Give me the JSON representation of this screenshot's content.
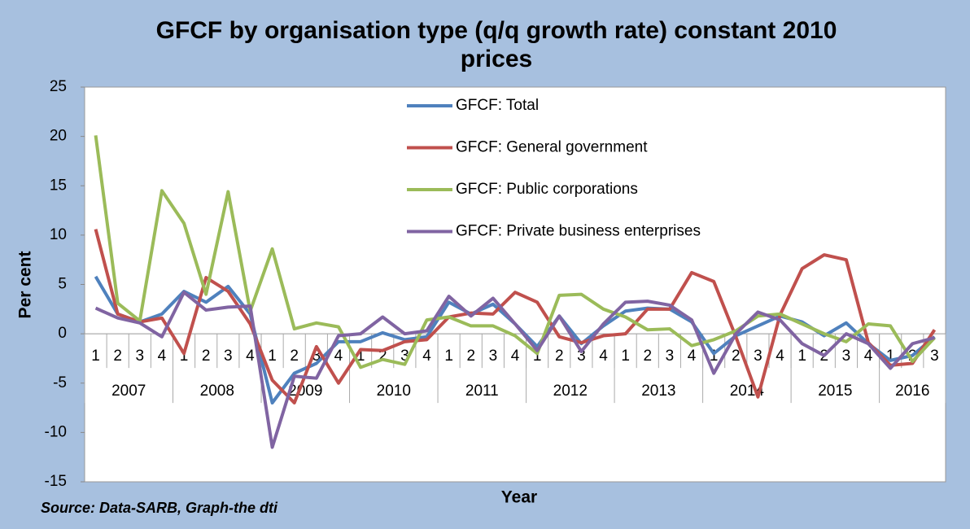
{
  "chart_data": {
    "type": "line",
    "title": "GFCF by organisation type (q/q growth rate) constant 2010 prices",
    "y_label": "Per cent",
    "x_label": "Year",
    "source": "Source: Data-SARB, Graph-the dti",
    "categories": [
      "1",
      "2",
      "3",
      "4",
      "1",
      "2",
      "3",
      "4",
      "1",
      "2",
      "3",
      "4",
      "1",
      "2",
      "3",
      "4",
      "1",
      "2",
      "3",
      "4",
      "1",
      "2",
      "3",
      "4",
      "1",
      "2",
      "3",
      "4",
      "1",
      "2",
      "3",
      "4",
      "1",
      "2",
      "3",
      "4",
      "1",
      "2",
      "3"
    ],
    "category_groups": [
      {
        "label": "2007",
        "span": 4
      },
      {
        "label": "2008",
        "span": 4
      },
      {
        "label": "2009",
        "span": 4
      },
      {
        "label": "2010",
        "span": 4
      },
      {
        "label": "2011",
        "span": 4
      },
      {
        "label": "2012",
        "span": 4
      },
      {
        "label": "2013",
        "span": 4
      },
      {
        "label": "2014",
        "span": 4
      },
      {
        "label": "2015",
        "span": 4
      },
      {
        "label": "2016",
        "span": 3
      }
    ],
    "series": [
      {
        "name": "GFCF: Total",
        "color": "#4f81bd",
        "values": [
          5.8,
          2.0,
          1.2,
          2.0,
          4.3,
          3.2,
          4.8,
          2.0,
          -7.0,
          -4.0,
          -3.0,
          -0.8,
          -0.8,
          0.1,
          -0.6,
          -0.3,
          3.2,
          2.0,
          3.0,
          1.0,
          -1.3,
          1.8,
          -1.0,
          0.8,
          2.3,
          2.6,
          2.5,
          1.2,
          -2.0,
          -0.2,
          0.8,
          1.8,
          1.2,
          -0.2,
          1.1,
          -1.0,
          -2.7,
          -2.2,
          -0.3
        ]
      },
      {
        "name": "GFCF: General government",
        "color": "#c0504d",
        "values": [
          10.6,
          2.0,
          1.2,
          1.6,
          -2.0,
          5.7,
          4.3,
          1.0,
          -4.7,
          -7.0,
          -1.3,
          -5.0,
          -1.6,
          -1.7,
          -0.8,
          -0.6,
          1.7,
          2.1,
          2.0,
          4.2,
          3.2,
          -0.3,
          -0.9,
          -0.2,
          0.0,
          2.5,
          2.5,
          6.2,
          5.3,
          -0.3,
          -6.4,
          1.9,
          6.6,
          8.0,
          7.5,
          -0.9,
          -3.2,
          -3.0,
          0.4
        ]
      },
      {
        "name": "GFCF: Public corporations",
        "color": "#9bbb59",
        "values": [
          20.1,
          3.1,
          1.3,
          14.5,
          11.2,
          4.0,
          14.4,
          2.3,
          8.6,
          0.5,
          1.1,
          0.7,
          -3.4,
          -2.6,
          -3.1,
          1.4,
          1.7,
          0.8,
          0.8,
          -0.2,
          -2.0,
          3.9,
          4.0,
          2.5,
          1.7,
          0.4,
          0.5,
          -1.2,
          -0.6,
          0.3,
          1.8,
          2.0,
          1.0,
          0.0,
          -0.8,
          1.0,
          0.8,
          -2.8,
          -0.4
        ]
      },
      {
        "name": "GFCF: Private business enterprises",
        "color": "#8064a2",
        "values": [
          2.6,
          1.6,
          1.1,
          -0.3,
          4.2,
          2.4,
          2.7,
          2.8,
          -11.5,
          -4.3,
          -4.5,
          -0.2,
          0.0,
          1.7,
          0.0,
          0.3,
          3.8,
          1.8,
          3.6,
          1.0,
          -1.7,
          1.8,
          -1.8,
          1.0,
          3.2,
          3.3,
          2.9,
          1.4,
          -4.0,
          0.0,
          2.2,
          1.4,
          -1.0,
          -2.2,
          0.0,
          -1.0,
          -3.5,
          -1.0,
          -0.4
        ]
      }
    ],
    "ylim": [
      -15,
      25
    ],
    "yticks": [
      -15,
      -10,
      -5,
      0,
      5,
      10,
      15,
      20,
      25
    ],
    "grid": false
  }
}
